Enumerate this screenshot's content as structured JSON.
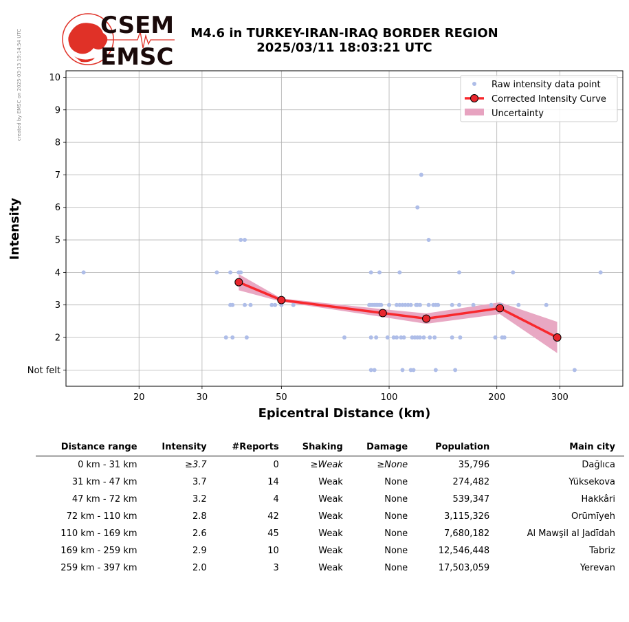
{
  "meta": {
    "created_note": "created by EMSC on 2025-03-13 19:14:54 UTC"
  },
  "logo": {
    "line1": "CSEM",
    "line2": "EMSC",
    "text_color": "#1a0a0a",
    "globe_color": "#e03127"
  },
  "header": {
    "title_line1": "M4.6 in TURKEY-IRAN-IRAQ BORDER REGION",
    "title_line2": "2025/03/11 18:03:21 UTC"
  },
  "chart_data": {
    "type": "scatter",
    "xlabel": "Epicentral Distance (km)",
    "ylabel": "Intensity",
    "x_scale": "log",
    "xlim": [
      12.5,
      450
    ],
    "ylim": [
      0.5,
      10.2
    ],
    "x_ticks": [
      20,
      30,
      50,
      100,
      200,
      300
    ],
    "y_ticks": [
      {
        "value": 1,
        "label": "Not felt"
      },
      {
        "value": 2,
        "label": "2"
      },
      {
        "value": 3,
        "label": "3"
      },
      {
        "value": 4,
        "label": "4"
      },
      {
        "value": 5,
        "label": "5"
      },
      {
        "value": 6,
        "label": "6"
      },
      {
        "value": 7,
        "label": "7"
      },
      {
        "value": 8,
        "label": "8"
      },
      {
        "value": 9,
        "label": "9"
      },
      {
        "value": 10,
        "label": "10"
      }
    ],
    "grid": true,
    "legend_position": "top-right",
    "legend": [
      "Raw intensity data point",
      "Corrected Intensity Curve",
      "Uncertainty"
    ],
    "colors": {
      "raw": "#aebde8",
      "curve": "#f8282d",
      "curve_marker": "#e8262d",
      "uncertainty": "#e7a3c0"
    },
    "raw_points": [
      [
        14,
        4
      ],
      [
        33,
        4
      ],
      [
        36,
        4
      ],
      [
        38,
        4
      ],
      [
        38.5,
        4
      ],
      [
        89,
        4
      ],
      [
        94,
        4
      ],
      [
        107,
        4
      ],
      [
        157,
        4
      ],
      [
        222,
        4
      ],
      [
        390,
        4
      ],
      [
        38.5,
        5
      ],
      [
        39.5,
        5
      ],
      [
        129,
        5
      ],
      [
        120,
        6
      ],
      [
        123,
        7
      ],
      [
        36,
        3
      ],
      [
        36.5,
        3
      ],
      [
        39.5,
        3
      ],
      [
        41,
        3
      ],
      [
        47,
        3
      ],
      [
        48,
        3
      ],
      [
        50,
        3
      ],
      [
        54,
        3
      ],
      [
        88,
        3
      ],
      [
        89,
        3
      ],
      [
        90,
        3
      ],
      [
        91,
        3
      ],
      [
        92,
        3
      ],
      [
        93,
        3
      ],
      [
        94,
        3
      ],
      [
        95,
        3
      ],
      [
        100,
        3
      ],
      [
        105,
        3
      ],
      [
        107,
        3
      ],
      [
        109,
        3
      ],
      [
        111,
        3
      ],
      [
        113,
        3
      ],
      [
        115,
        3
      ],
      [
        119,
        3
      ],
      [
        120,
        3
      ],
      [
        122,
        3
      ],
      [
        129,
        3
      ],
      [
        133,
        3
      ],
      [
        135,
        3
      ],
      [
        137,
        3
      ],
      [
        150,
        3
      ],
      [
        157,
        3
      ],
      [
        172,
        3
      ],
      [
        193,
        3
      ],
      [
        205,
        3
      ],
      [
        230,
        3
      ],
      [
        275,
        3
      ],
      [
        35,
        2
      ],
      [
        36.5,
        2
      ],
      [
        40,
        2
      ],
      [
        75,
        2
      ],
      [
        89,
        2
      ],
      [
        92,
        2
      ],
      [
        99,
        2
      ],
      [
        103,
        2
      ],
      [
        105,
        2
      ],
      [
        108,
        2
      ],
      [
        110,
        2
      ],
      [
        116,
        2
      ],
      [
        118,
        2
      ],
      [
        120,
        2
      ],
      [
        122,
        2
      ],
      [
        125,
        2
      ],
      [
        130,
        2
      ],
      [
        134,
        2
      ],
      [
        150,
        2
      ],
      [
        158,
        2
      ],
      [
        198,
        2
      ],
      [
        207,
        2
      ],
      [
        210,
        2
      ],
      [
        89,
        1
      ],
      [
        91,
        1
      ],
      [
        109,
        1
      ],
      [
        115,
        1
      ],
      [
        117,
        1
      ],
      [
        135,
        1
      ],
      [
        153,
        1
      ],
      [
        330,
        1
      ]
    ],
    "curve": [
      {
        "x": 38,
        "y": 3.7,
        "lo": 3.45,
        "hi": 3.95
      },
      {
        "x": 50,
        "y": 3.15,
        "lo": 3.1,
        "hi": 3.2
      },
      {
        "x": 96,
        "y": 2.75,
        "lo": 2.63,
        "hi": 2.87
      },
      {
        "x": 127,
        "y": 2.58,
        "lo": 2.42,
        "hi": 2.74
      },
      {
        "x": 204,
        "y": 2.9,
        "lo": 2.72,
        "hi": 3.08
      },
      {
        "x": 295,
        "y": 2.0,
        "lo": 1.52,
        "hi": 2.48
      }
    ]
  },
  "table": {
    "headers": [
      "Distance range",
      "Intensity",
      "#Reports",
      "Shaking",
      "Damage",
      "Population",
      "Main city"
    ],
    "rows": [
      {
        "range": "0 km -   31 km",
        "intensity": "≥3.7",
        "reports": "0",
        "shaking": "≥Weak",
        "damage": "≥None",
        "population": "35,796",
        "city": "Dağlıca"
      },
      {
        "range": "31 km -   47 km",
        "intensity": "3.7",
        "reports": "14",
        "shaking": "Weak",
        "damage": "None",
        "population": "274,482",
        "city": "Yüksekova"
      },
      {
        "range": "47 km -   72 km",
        "intensity": "3.2",
        "reports": "4",
        "shaking": "Weak",
        "damage": "None",
        "population": "539,347",
        "city": "Hakkâri"
      },
      {
        "range": "72 km -  110 km",
        "intensity": "2.8",
        "reports": "42",
        "shaking": "Weak",
        "damage": "None",
        "population": "3,115,326",
        "city": "Orūmīyeh"
      },
      {
        "range": "110 km -  169 km",
        "intensity": "2.6",
        "reports": "45",
        "shaking": "Weak",
        "damage": "None",
        "population": "7,680,182",
        "city": "Al Mawşil al Jadīdah"
      },
      {
        "range": "169 km -  259 km",
        "intensity": "2.9",
        "reports": "10",
        "shaking": "Weak",
        "damage": "None",
        "population": "12,546,448",
        "city": "Tabriz"
      },
      {
        "range": "259 km -  397 km",
        "intensity": "2.0",
        "reports": "3",
        "shaking": "Weak",
        "damage": "None",
        "population": "17,503,059",
        "city": "Yerevan"
      }
    ]
  }
}
